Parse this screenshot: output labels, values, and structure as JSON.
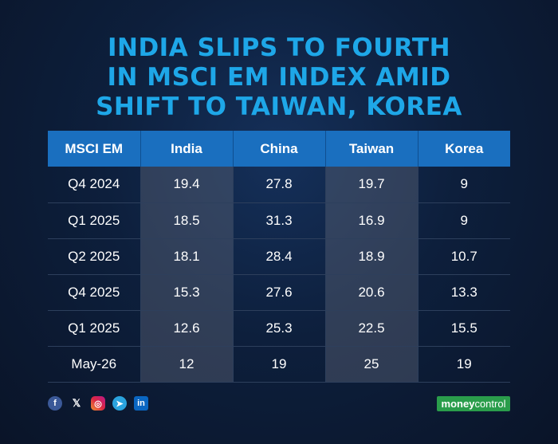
{
  "title_lines": [
    "INDIA SLIPS TO FOURTH",
    "IN MSCI EM INDEX AMID",
    "SHIFT TO TAIWAN, KOREA"
  ],
  "chart_data": {
    "type": "table",
    "title": "INDIA SLIPS TO FOURTH IN MSCI EM INDEX AMID SHIFT TO TAIWAN, KOREA",
    "columns": [
      "MSCI EM",
      "India",
      "China",
      "Taiwan",
      "Korea"
    ],
    "rows": [
      [
        "Q4 2024",
        "19.4",
        "27.8",
        "19.7",
        "9"
      ],
      [
        "Q1 2025",
        "18.5",
        "31.3",
        "16.9",
        "9"
      ],
      [
        "Q2 2025",
        "18.1",
        "28.4",
        "18.9",
        "10.7"
      ],
      [
        "Q4 2025",
        "15.3",
        "27.6",
        "20.6",
        "13.3"
      ],
      [
        "Q1 2025",
        "12.6",
        "25.3",
        "22.5",
        "15.5"
      ],
      [
        "May-26",
        "12",
        "19",
        "25",
        "19"
      ]
    ],
    "highlight_columns": [
      1,
      3
    ]
  },
  "footer": {
    "social_icons": [
      "facebook-icon",
      "x-icon",
      "instagram-icon",
      "telegram-icon",
      "linkedin-icon"
    ],
    "logo_part1": "money",
    "logo_part2": "control"
  },
  "colors": {
    "title": "#1ea7e8",
    "header_bg": "#1a6fbf",
    "background": "#0d1f3c"
  }
}
